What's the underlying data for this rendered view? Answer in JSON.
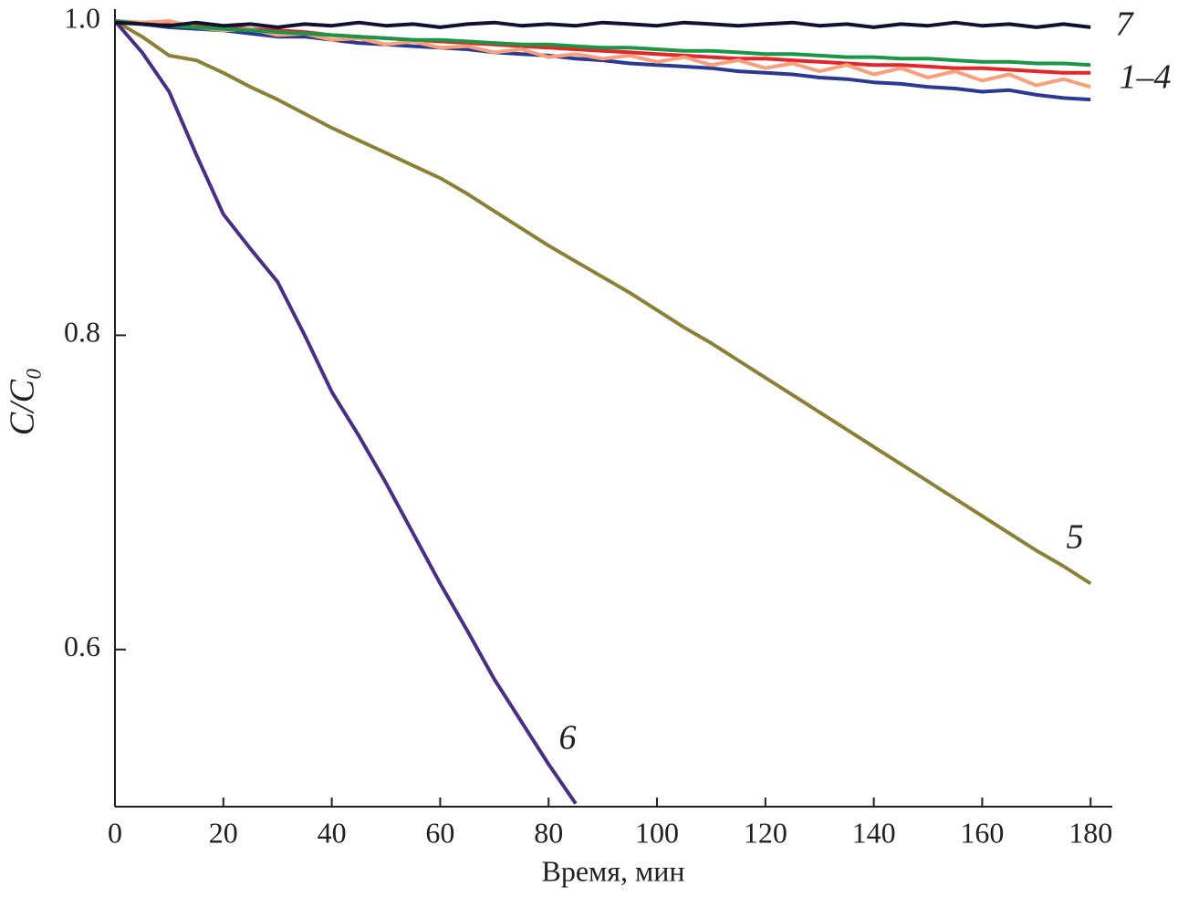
{
  "chart_data": {
    "type": "line",
    "x_label": "Время, мин",
    "y_label": "C/C₀",
    "annotations": [
      "7",
      "1–4",
      "5",
      "6"
    ],
    "x": [
      0,
      5,
      10,
      15,
      20,
      25,
      30,
      35,
      40,
      45,
      50,
      55,
      60,
      65,
      70,
      75,
      80,
      85,
      90,
      95,
      100,
      105,
      110,
      115,
      120,
      125,
      130,
      135,
      140,
      145,
      150,
      155,
      160,
      165,
      170,
      175,
      180
    ],
    "xlim": [
      0,
      184
    ],
    "ylim": [
      0.5,
      1.0
    ],
    "xticks": [
      0,
      20,
      40,
      60,
      80,
      100,
      120,
      140,
      160,
      180
    ],
    "yticks": [
      0.6,
      0.8,
      {
        "value": 1,
        "label": "1.0"
      }
    ],
    "series": [
      {
        "color": "#2b3990",
        "values": [
          1.0,
          0.998,
          0.996,
          0.995,
          0.994,
          0.992,
          0.99,
          0.99,
          0.988,
          0.986,
          0.985,
          0.984,
          0.983,
          0.982,
          0.98,
          0.979,
          0.978,
          0.976,
          0.975,
          0.973,
          0.972,
          0.971,
          0.97,
          0.968,
          0.967,
          0.966,
          0.964,
          0.963,
          0.961,
          0.96,
          0.958,
          0.957,
          0.955,
          0.956,
          0.953,
          0.951,
          0.95
        ]
      },
      {
        "color": "#e4262a",
        "values": [
          1.0,
          0.999,
          0.998,
          0.997,
          0.996,
          0.995,
          0.994,
          0.993,
          0.991,
          0.99,
          0.989,
          0.988,
          0.987,
          0.986,
          0.985,
          0.984,
          0.983,
          0.982,
          0.981,
          0.98,
          0.979,
          0.978,
          0.977,
          0.976,
          0.976,
          0.975,
          0.974,
          0.973,
          0.972,
          0.972,
          0.971,
          0.97,
          0.97,
          0.969,
          0.968,
          0.967,
          0.967
        ]
      },
      {
        "color": "#f7a07a",
        "values": [
          1.0,
          0.999,
          1.0,
          0.996,
          0.994,
          0.995,
          0.991,
          0.992,
          0.988,
          0.989,
          0.985,
          0.987,
          0.983,
          0.984,
          0.98,
          0.982,
          0.977,
          0.979,
          0.976,
          0.978,
          0.974,
          0.977,
          0.972,
          0.975,
          0.97,
          0.973,
          0.968,
          0.972,
          0.966,
          0.97,
          0.964,
          0.968,
          0.962,
          0.966,
          0.959,
          0.963,
          0.958
        ]
      },
      {
        "color": "#1a9646",
        "values": [
          1.0,
          0.998,
          0.997,
          0.996,
          0.995,
          0.994,
          0.993,
          0.992,
          0.991,
          0.99,
          0.989,
          0.988,
          0.988,
          0.987,
          0.986,
          0.985,
          0.985,
          0.984,
          0.983,
          0.983,
          0.982,
          0.981,
          0.981,
          0.98,
          0.979,
          0.979,
          0.978,
          0.977,
          0.977,
          0.976,
          0.976,
          0.975,
          0.974,
          0.974,
          0.973,
          0.973,
          0.972
        ]
      },
      {
        "color": "#8b8035",
        "values": [
          1.0,
          0.99,
          0.978,
          0.975,
          0.967,
          0.958,
          0.95,
          0.941,
          0.932,
          0.924,
          0.916,
          0.908,
          0.9,
          0.89,
          0.879,
          0.868,
          0.857,
          0.847,
          0.837,
          0.827,
          0.816,
          0.805,
          0.795,
          0.784,
          0.773,
          0.762,
          0.751,
          0.74,
          0.729,
          0.718,
          0.707,
          0.696,
          0.685,
          0.674,
          0.663,
          0.653,
          0.642
        ]
      },
      {
        "color": "#4b2e83",
        "values": [
          1.0,
          0.98,
          0.955,
          0.915,
          0.877,
          0.855,
          0.834,
          0.8,
          0.764,
          0.736,
          0.706,
          0.674,
          0.642,
          0.612,
          0.581,
          0.554,
          0.527,
          0.502,
          null,
          null,
          null,
          null,
          null,
          null,
          null,
          null,
          null,
          null,
          null,
          null,
          null,
          null,
          null,
          null,
          null,
          null,
          null
        ]
      },
      {
        "color": "#111133",
        "values": [
          0.999,
          0.998,
          0.997,
          0.999,
          0.997,
          0.998,
          0.996,
          0.998,
          0.997,
          0.999,
          0.997,
          0.998,
          0.996,
          0.998,
          0.999,
          0.997,
          0.998,
          0.997,
          0.999,
          0.998,
          0.997,
          0.999,
          0.998,
          0.997,
          0.998,
          0.999,
          0.997,
          0.998,
          0.996,
          0.998,
          0.997,
          0.999,
          0.997,
          0.998,
          0.996,
          0.998,
          0.996
        ]
      }
    ]
  }
}
